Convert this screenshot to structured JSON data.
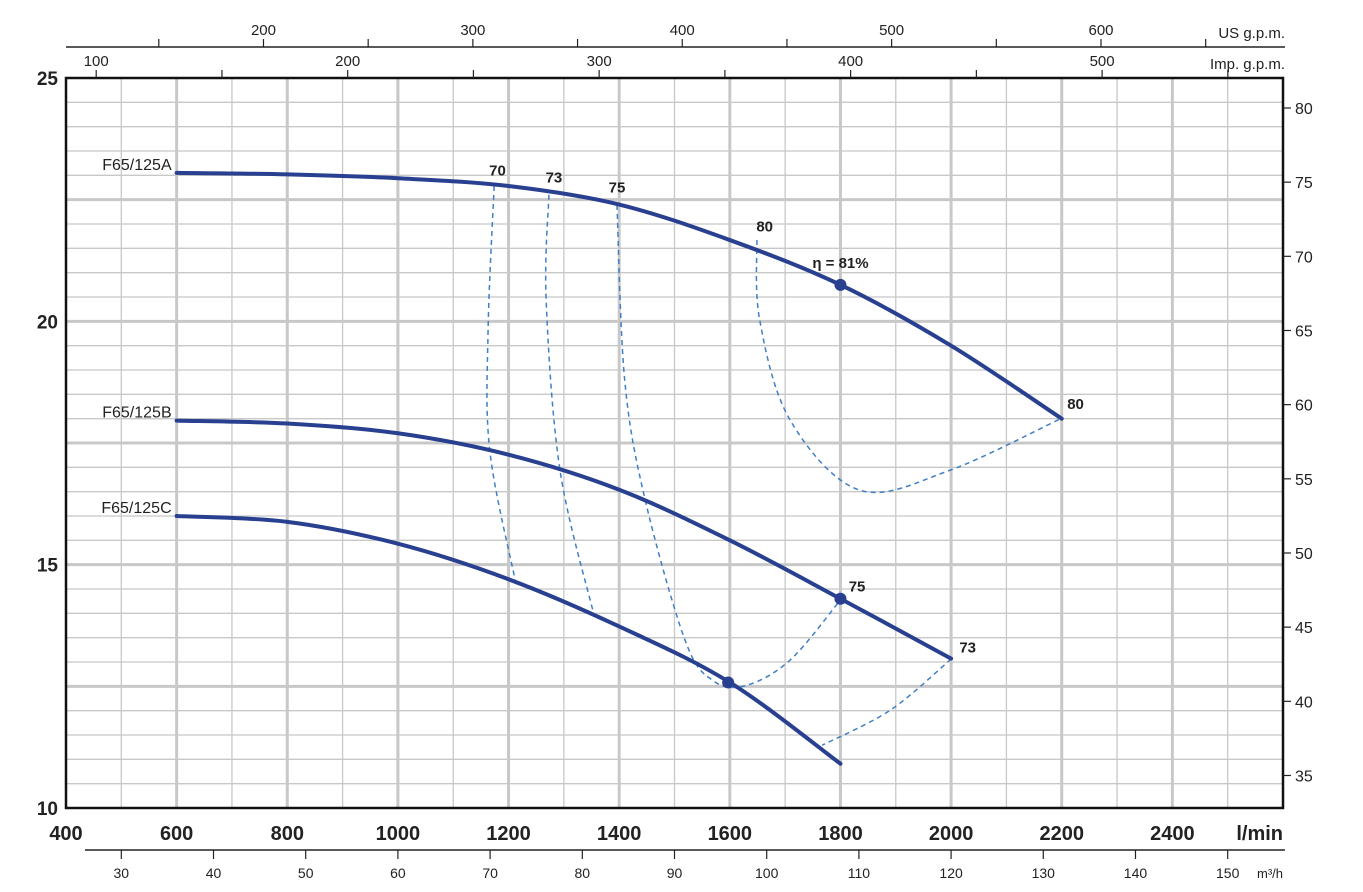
{
  "chart_data": {
    "type": "line",
    "x": {
      "label": "l/min",
      "range": [
        400,
        2600
      ],
      "ticks": [
        400,
        600,
        800,
        1000,
        1200,
        1400,
        1600,
        1800,
        2000,
        2200,
        2400
      ]
    },
    "y_left": {
      "label": "",
      "range": [
        10,
        25
      ],
      "ticks": [
        10,
        15,
        20,
        25
      ]
    },
    "y_right": {
      "label": "",
      "ticks": [
        35,
        40,
        45,
        50,
        55,
        60,
        65,
        70,
        75,
        80
      ]
    },
    "x_bottom_secondary": {
      "label": "m³/h",
      "ticks": [
        30,
        40,
        50,
        60,
        70,
        80,
        90,
        100,
        110,
        120,
        130,
        140,
        150
      ]
    },
    "x_top_us": {
      "label": "US g.p.m.",
      "ticks": [
        200,
        300,
        400,
        500,
        600
      ]
    },
    "x_top_imp": {
      "label": "Imp. g.p.m.",
      "ticks": [
        100,
        200,
        300,
        400,
        500
      ]
    },
    "grid": true,
    "series": [
      {
        "name": "F65/125A",
        "points": [
          [
            600,
            23.05
          ],
          [
            800,
            23.02
          ],
          [
            1000,
            22.94
          ],
          [
            1200,
            22.78
          ],
          [
            1400,
            22.4
          ],
          [
            1600,
            21.67
          ],
          [
            1800,
            20.75
          ],
          [
            2000,
            19.5
          ],
          [
            2200,
            18.0
          ]
        ]
      },
      {
        "name": "F65/125B",
        "points": [
          [
            600,
            17.96
          ],
          [
            800,
            17.9
          ],
          [
            1000,
            17.7
          ],
          [
            1200,
            17.26
          ],
          [
            1400,
            16.54
          ],
          [
            1600,
            15.5
          ],
          [
            1800,
            14.3
          ],
          [
            2000,
            13.07
          ]
        ]
      },
      {
        "name": "F65/125C",
        "points": [
          [
            600,
            16.0
          ],
          [
            800,
            15.88
          ],
          [
            1000,
            15.43
          ],
          [
            1200,
            14.7
          ],
          [
            1400,
            13.73
          ],
          [
            1600,
            12.58
          ],
          [
            1800,
            10.91
          ]
        ]
      }
    ],
    "efficiency_curves": [
      {
        "label": "70",
        "points": [
          [
            1174,
            22.78
          ],
          [
            1163,
            19.82
          ],
          [
            1166,
            17.35
          ],
          [
            1212,
            14.68
          ]
        ]
      },
      {
        "label": "73",
        "points": [
          [
            1273,
            22.6
          ],
          [
            1268,
            20.43
          ],
          [
            1293,
            16.94
          ],
          [
            1353,
            14.03
          ]
        ]
      },
      {
        "label": "75",
        "points": [
          [
            1396,
            22.39
          ],
          [
            1410,
            18.79
          ],
          [
            1447,
            16.33
          ],
          [
            1519,
            13.45
          ],
          [
            1568,
            12.63
          ],
          [
            1627,
            12.51
          ],
          [
            1709,
            13.04
          ],
          [
            1801,
            14.29
          ]
        ]
      },
      {
        "label": "80",
        "points": [
          [
            1649,
            21.67
          ],
          [
            1654,
            20.03
          ],
          [
            1709,
            17.97
          ],
          [
            1835,
            16.53
          ],
          [
            1998,
            16.94
          ],
          [
            2200,
            18.01
          ]
        ]
      },
      {
        "label": "73",
        "points": [
          [
            2000,
            13.06
          ],
          [
            1890,
            12.01
          ],
          [
            1767,
            11.29
          ]
        ]
      }
    ],
    "annotations": [
      {
        "text": "70",
        "at": [
          1180,
          23.0
        ]
      },
      {
        "text": "73",
        "at": [
          1282,
          22.85
        ]
      },
      {
        "text": "75",
        "at": [
          1396,
          22.65
        ]
      },
      {
        "text": "80",
        "at": [
          1663,
          21.85
        ]
      },
      {
        "text": "η = 81%",
        "at": [
          1800,
          21.1
        ]
      },
      {
        "text": "80",
        "at": [
          2225,
          18.2
        ]
      },
      {
        "text": "75",
        "at": [
          1830,
          14.45
        ]
      },
      {
        "text": "73",
        "at": [
          2030,
          13.2
        ]
      }
    ],
    "markers": [
      [
        1800,
        20.75
      ],
      [
        1800,
        14.3
      ],
      [
        1597,
        12.58
      ]
    ],
    "colors": {
      "curve": "#28408f",
      "efficiency": "#3f7fc6",
      "grid": "#c8c8c8"
    }
  }
}
